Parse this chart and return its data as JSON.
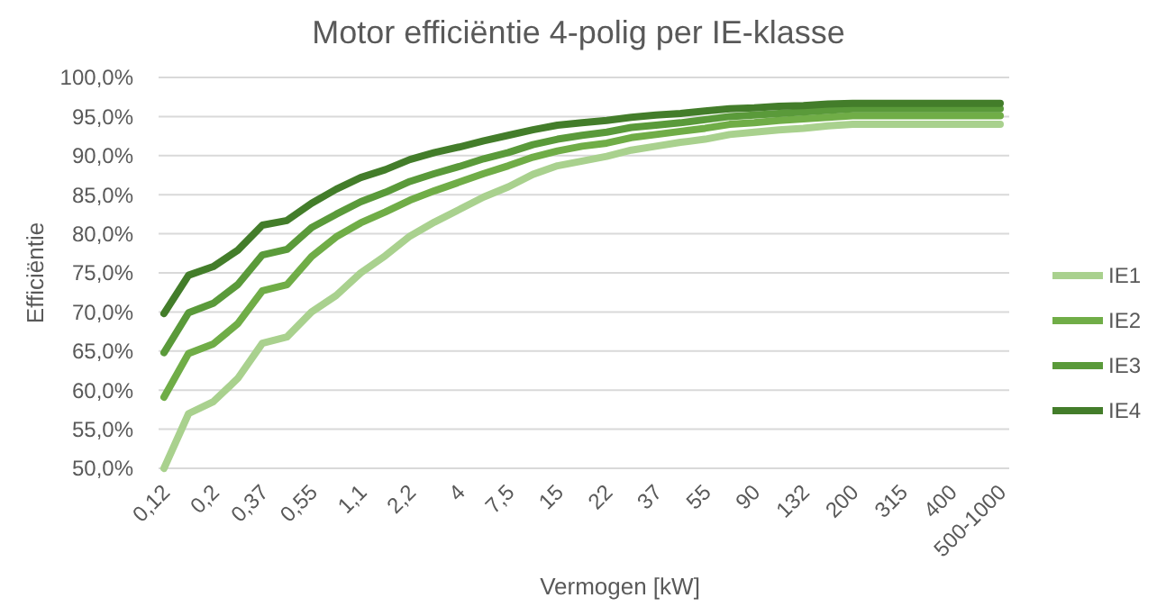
{
  "chart_data": {
    "type": "line",
    "title": "Motor efficiëntie 4-polig per IE-klasse",
    "xlabel": "Vermogen [kW]",
    "ylabel": "Efficiëntie",
    "categories": [
      "0,12",
      null,
      "0,2",
      null,
      "0,37",
      null,
      "0,55",
      null,
      "1,1",
      null,
      "2,2",
      null,
      "4",
      null,
      "7,5",
      null,
      "15",
      null,
      "22",
      null,
      "37",
      null,
      "55",
      null,
      "90",
      null,
      "132",
      null,
      "200",
      null,
      "315",
      null,
      "400",
      null,
      "500-1000"
    ],
    "series": [
      {
        "name": "IE1",
        "color": "#a9d18e",
        "values": [
          50.0,
          57.0,
          58.5,
          61.5,
          66.0,
          66.8,
          70.0,
          72.1,
          75.0,
          77.2,
          79.7,
          81.5,
          83.1,
          84.7,
          86.0,
          87.6,
          88.7,
          89.3,
          89.9,
          90.7,
          91.2,
          91.7,
          92.1,
          92.7,
          93.0,
          93.3,
          93.5,
          93.8,
          94.0,
          94.0,
          94.0,
          94.0,
          94.0,
          94.0,
          94.0
        ]
      },
      {
        "name": "IE2",
        "color": "#70ad47",
        "values": [
          59.1,
          64.7,
          65.9,
          68.5,
          72.7,
          73.5,
          77.1,
          79.6,
          81.4,
          82.8,
          84.3,
          85.5,
          86.6,
          87.7,
          88.7,
          89.8,
          90.6,
          91.2,
          91.6,
          92.3,
          92.7,
          93.1,
          93.5,
          94.0,
          94.2,
          94.5,
          94.7,
          94.9,
          95.1,
          95.1,
          95.1,
          95.1,
          95.1,
          95.1,
          95.1
        ]
      },
      {
        "name": "IE3",
        "color": "#5a9a3a",
        "values": [
          64.8,
          69.9,
          71.1,
          73.5,
          77.3,
          78.0,
          80.8,
          82.5,
          84.1,
          85.3,
          86.7,
          87.7,
          88.6,
          89.6,
          90.4,
          91.4,
          92.1,
          92.6,
          93.0,
          93.6,
          93.9,
          94.2,
          94.6,
          95.0,
          95.2,
          95.4,
          95.6,
          95.8,
          96.0,
          96.0,
          96.0,
          96.0,
          96.0,
          96.0,
          96.0
        ]
      },
      {
        "name": "IE4",
        "color": "#437d2a",
        "values": [
          69.8,
          74.7,
          75.8,
          77.9,
          81.1,
          81.7,
          83.9,
          85.7,
          87.2,
          88.2,
          89.5,
          90.4,
          91.1,
          91.9,
          92.6,
          93.3,
          93.9,
          94.2,
          94.5,
          94.9,
          95.2,
          95.4,
          95.7,
          96.0,
          96.1,
          96.3,
          96.4,
          96.6,
          96.7,
          96.7,
          96.7,
          96.7,
          96.7,
          96.7,
          96.7
        ]
      }
    ],
    "ylim": [
      50,
      100
    ],
    "yticks": [
      {
        "value": 50,
        "label": "50,0%"
      },
      {
        "value": 55,
        "label": "55,0%"
      },
      {
        "value": 60,
        "label": "60,0%"
      },
      {
        "value": 65,
        "label": "65,0%"
      },
      {
        "value": 70,
        "label": "70,0%"
      },
      {
        "value": 75,
        "label": "75,0%"
      },
      {
        "value": 80,
        "label": "80,0%"
      },
      {
        "value": 85,
        "label": "85,0%"
      },
      {
        "value": 90,
        "label": "90,0%"
      },
      {
        "value": 95,
        "label": "95,0%"
      },
      {
        "value": 100,
        "label": "100,0%"
      }
    ],
    "grid": "y",
    "legend": "right",
    "line_style": "solid",
    "marker": "none"
  }
}
